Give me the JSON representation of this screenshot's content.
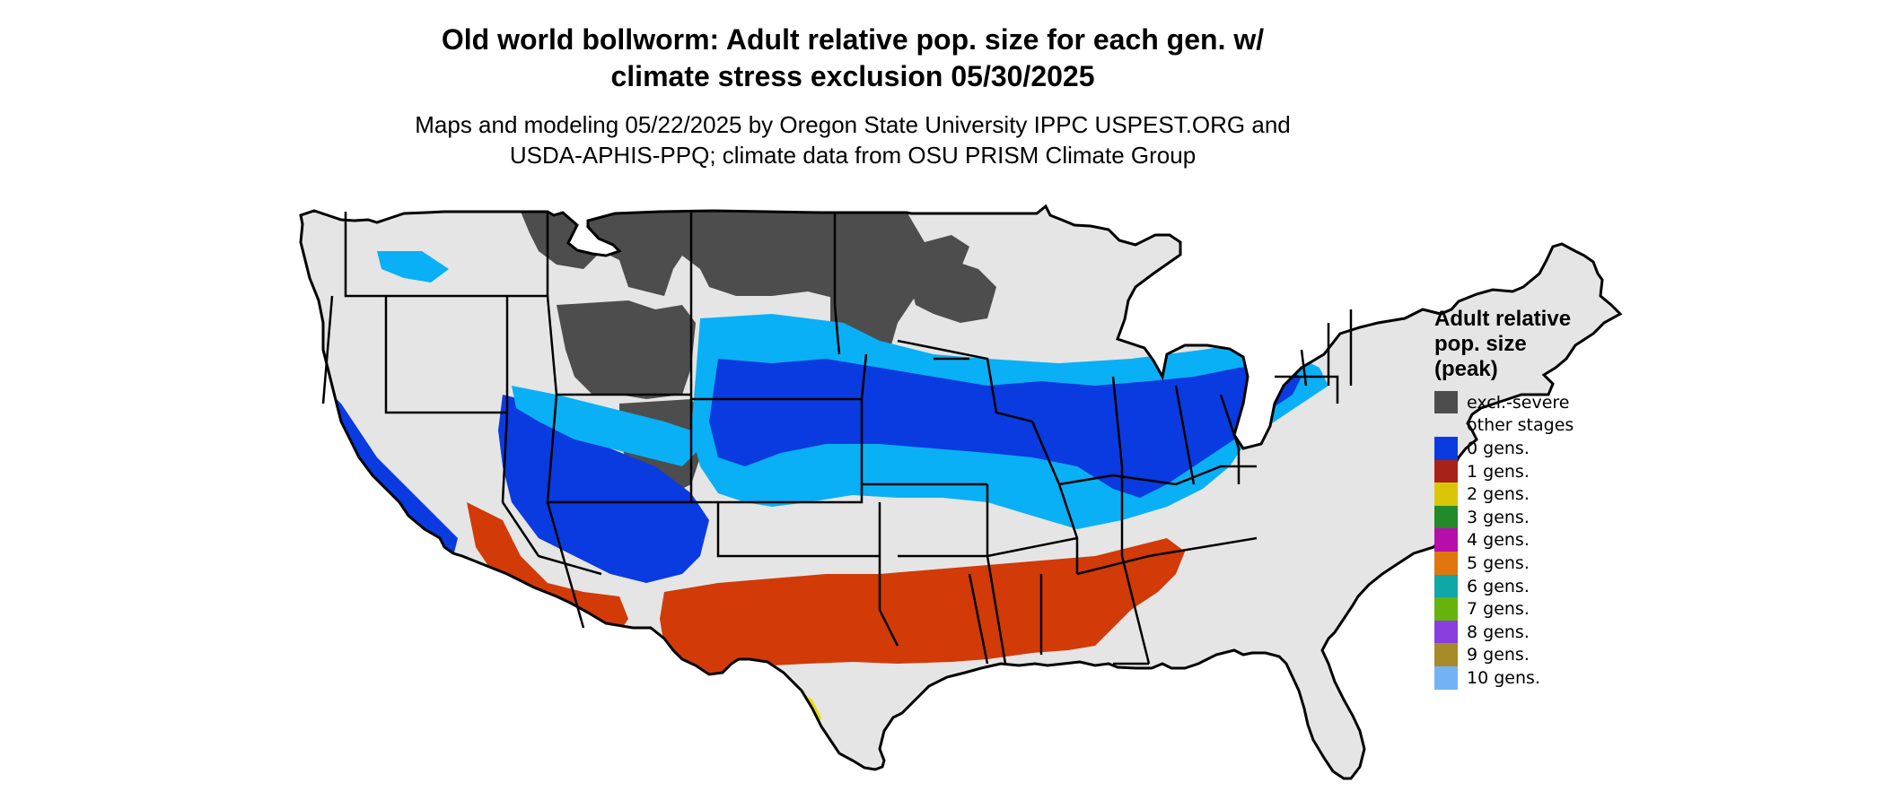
{
  "title": {
    "line1": "Old world bollworm: Adult relative pop. size for each gen. w/",
    "line2": "climate stress exclusion 05/30/2025"
  },
  "subtitle": {
    "line1": "Maps and modeling 05/22/2025 by Oregon State University IPPC USPEST.ORG and",
    "line2": "USDA-APHIS-PPQ; climate data from OSU PRISM Climate Group"
  },
  "legend": {
    "title_line1": "Adult relative",
    "title_line2": "pop. size",
    "title_line3": "(peak)",
    "items": [
      {
        "label": "excl.-severe",
        "color": "#4d4d4d"
      },
      {
        "label": "other stages",
        "color": "#e5e5e5"
      },
      {
        "label": "0 gens.",
        "color": "#0a3be0"
      },
      {
        "label": "1 gens.",
        "color": "#a82219"
      },
      {
        "label": "2 gens.",
        "color": "#d9c609"
      },
      {
        "label": "3 gens.",
        "color": "#238a2a"
      },
      {
        "label": "4 gens.",
        "color": "#b50eab"
      },
      {
        "label": "5 gens.",
        "color": "#e0760d"
      },
      {
        "label": "6 gens.",
        "color": "#0fa8a6"
      },
      {
        "label": "7 gens.",
        "color": "#66b30d"
      },
      {
        "label": "8 gens.",
        "color": "#8a3ee0"
      },
      {
        "label": "9 gens.",
        "color": "#a68a27"
      },
      {
        "label": "10 gens.",
        "color": "#73b3f5"
      }
    ]
  },
  "map_colors": {
    "land_base": "#e5e5e5",
    "excluded": "#4d4d4d",
    "cold_blue": "#0a3be0",
    "light_blue": "#0ab0f5",
    "red": "#d23a08",
    "yellow": "#e8df08",
    "border": "#000000"
  }
}
